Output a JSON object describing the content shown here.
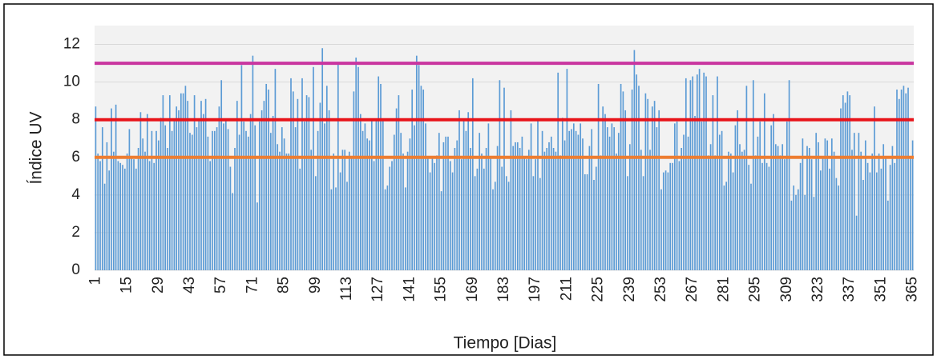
{
  "chart_data": {
    "type": "bar",
    "ylabel": "Índice UV",
    "xlabel": "Tiempo [Dias]",
    "color": "#5b9bd5",
    "ylim": [
      0,
      13
    ],
    "yticks": [
      0,
      2,
      4,
      6,
      8,
      10,
      12
    ],
    "grid": true,
    "hlines": [
      {
        "value": 6,
        "color": "#ed7d31"
      },
      {
        "value": 8,
        "color": "#e8141a"
      },
      {
        "value": 11,
        "color": "#c9359f"
      }
    ],
    "categories": [
      "1",
      null,
      null,
      null,
      null,
      null,
      null,
      null,
      null,
      null,
      null,
      null,
      null,
      null,
      "15",
      null,
      null,
      null,
      null,
      null,
      null,
      null,
      null,
      null,
      null,
      null,
      null,
      null,
      "29",
      null,
      null,
      null,
      null,
      null,
      null,
      null,
      null,
      null,
      null,
      null,
      null,
      null,
      "43",
      null,
      null,
      null,
      null,
      null,
      null,
      null,
      null,
      null,
      null,
      null,
      null,
      null,
      "57",
      null,
      null,
      null,
      null,
      null,
      null,
      null,
      null,
      null,
      null,
      null,
      null,
      null,
      "71",
      null,
      null,
      null,
      null,
      null,
      null,
      null,
      null,
      null,
      null,
      null,
      null,
      null,
      "85",
      null,
      null,
      null,
      null,
      null,
      null,
      null,
      null,
      null,
      null,
      null,
      null,
      null,
      "99",
      null,
      null,
      null,
      null,
      null,
      null,
      null,
      null,
      null,
      null,
      null,
      null,
      null,
      "113",
      null,
      null,
      null,
      null,
      null,
      null,
      null,
      null,
      null,
      null,
      null,
      null,
      null,
      "127",
      null,
      null,
      null,
      null,
      null,
      null,
      null,
      null,
      null,
      null,
      null,
      null,
      null,
      "141",
      null,
      null,
      null,
      null,
      null,
      null,
      null,
      null,
      null,
      null,
      null,
      null,
      null,
      "155",
      null,
      null,
      null,
      null,
      null,
      null,
      null,
      null,
      null,
      null,
      null,
      null,
      null,
      "169",
      null,
      null,
      null,
      null,
      null,
      null,
      null,
      null,
      null,
      null,
      null,
      null,
      null,
      "183",
      null,
      null,
      null,
      null,
      null,
      null,
      null,
      null,
      null,
      null,
      null,
      null,
      null,
      "197",
      null,
      null,
      null,
      null,
      null,
      null,
      null,
      null,
      null,
      null,
      null,
      null,
      null,
      "211",
      null,
      null,
      null,
      null,
      null,
      null,
      null,
      null,
      null,
      null,
      null,
      null,
      null,
      "225",
      null,
      null,
      null,
      null,
      null,
      null,
      null,
      null,
      null,
      null,
      null,
      null,
      null,
      "239",
      null,
      null,
      null,
      null,
      null,
      null,
      null,
      null,
      null,
      null,
      null,
      null,
      null,
      "253",
      null,
      null,
      null,
      null,
      null,
      null,
      null,
      null,
      null,
      null,
      null,
      null,
      null,
      "267",
      null,
      null,
      null,
      null,
      null,
      null,
      null,
      null,
      null,
      null,
      null,
      null,
      null,
      "281",
      null,
      null,
      null,
      null,
      null,
      null,
      null,
      null,
      null,
      null,
      null,
      null,
      null,
      "295",
      null,
      null,
      null,
      null,
      null,
      null,
      null,
      null,
      null,
      null,
      null,
      null,
      null,
      "309",
      null,
      null,
      null,
      null,
      null,
      null,
      null,
      null,
      null,
      null,
      null,
      null,
      null,
      "323",
      null,
      null,
      null,
      null,
      null,
      null,
      null,
      null,
      null,
      null,
      null,
      null,
      null,
      "337",
      null,
      null,
      null,
      null,
      null,
      null,
      null,
      null,
      null,
      null,
      null,
      null,
      null,
      "351",
      null,
      null,
      null,
      null,
      null,
      null,
      null,
      null,
      null,
      null,
      null,
      null,
      null,
      "365"
    ],
    "values": [
      8.7,
      6.2,
      5.8,
      7.6,
      4.6,
      6.8,
      5.3,
      8.6,
      6.3,
      8.8,
      5.8,
      5.7,
      5.6,
      5.4,
      6.2,
      7.5,
      6.0,
      5.9,
      5.4,
      6.5,
      8.4,
      7.0,
      6.3,
      8.3,
      5.8,
      7.4,
      5.7,
      7.4,
      6.9,
      8.1,
      9.3,
      7.7,
      6.5,
      9.3,
      7.4,
      8.0,
      8.7,
      8.5,
      9.4,
      9.4,
      9.8,
      9.0,
      7.3,
      7.2,
      9.3,
      7.6,
      8.0,
      9.0,
      8.3,
      9.1,
      7.1,
      5.8,
      7.4,
      7.4,
      7.6,
      8.7,
      10.1,
      7.8,
      8.0,
      7.5,
      5.5,
      4.1,
      6.5,
      9.0,
      7.2,
      10.9,
      7.9,
      7.4,
      7.1,
      8.3,
      11.4,
      7.7,
      3.6,
      7.9,
      8.5,
      9.0,
      9.9,
      9.6,
      7.3,
      8.2,
      10.7,
      6.7,
      6.3,
      7.6,
      7.0,
      6.2,
      6.2,
      10.2,
      9.5,
      7.6,
      9.1,
      5.4,
      10.2,
      7.9,
      9.3,
      9.2,
      6.4,
      10.8,
      5.0,
      7.4,
      8.9,
      11.8,
      7.8,
      9.8,
      8.5,
      4.3,
      6.2,
      4.4,
      11.0,
      5.2,
      6.4,
      6.4,
      4.7,
      6.3,
      6.0,
      9.5,
      11.3,
      10.8,
      8.3,
      7.4,
      7.8,
      7.0,
      6.9,
      8.0,
      5.8,
      8.0,
      10.3,
      9.9,
      8.0,
      4.3,
      4.5,
      5.5,
      5.8,
      7.2,
      8.6,
      9.3,
      7.3,
      6.2,
      4.4,
      6.3,
      7.0,
      9.6,
      7.7,
      11.4,
      10.9,
      9.8,
      9.6,
      7.8,
      6.0,
      5.2,
      6.0,
      5.7,
      6.1,
      7.3,
      4.2,
      6.8,
      7.1,
      7.1,
      5.8,
      5.2,
      6.5,
      6.9,
      8.5,
      5.9,
      8.0,
      7.4,
      8.4,
      6.5,
      10.2,
      5.0,
      5.4,
      7.3,
      6.2,
      5.4,
      6.5,
      7.8,
      6.0,
      4.3,
      4.7,
      6.6,
      10.1,
      5.5,
      9.7,
      5.0,
      4.7,
      8.5,
      6.6,
      6.8,
      6.8,
      6.5,
      7.1,
      6.0,
      5.9,
      6.4,
      7.8,
      5.0,
      5.9,
      8.0,
      4.9,
      7.4,
      6.3,
      6.5,
      6.8,
      7.1,
      6.5,
      6.3,
      10.5,
      6.1,
      8.1,
      6.9,
      10.7,
      7.4,
      7.5,
      7.8,
      7.4,
      7.2,
      7.8,
      7.0,
      5.1,
      5.1,
      6.6,
      7.5,
      4.8,
      5.5,
      9.9,
      6.1,
      8.7,
      8.3,
      7.6,
      7.1,
      7.8,
      7.6,
      6.2,
      7.3,
      9.9,
      9.5,
      8.5,
      5.0,
      6.7,
      9.6,
      11.7,
      10.4,
      9.8,
      6.4,
      5.0,
      9.4,
      9.1,
      6.4,
      8.7,
      9.0,
      7.6,
      8.5,
      4.3,
      5.2,
      5.3,
      5.2,
      5.7,
      5.7,
      7.8,
      7.9,
      5.8,
      6.5,
      7.2,
      10.2,
      7.1,
      10.1,
      10.3,
      8.2,
      10.4,
      10.7,
      7.9,
      10.5,
      10.3,
      6.1,
      6.7,
      9.3,
      6.1,
      10.3,
      7.2,
      7.4,
      4.5,
      4.7,
      6.3,
      6.2,
      5.2,
      7.7,
      8.5,
      6.7,
      6.3,
      6.4,
      9.8,
      5.6,
      4.6,
      10.1,
      6.1,
      7.1,
      7.9,
      5.7,
      9.4,
      5.7,
      5.5,
      7.7,
      8.3,
      6.7,
      6.6,
      6.1,
      6.7,
      5.9,
      7.9,
      10.1,
      3.7,
      4.5,
      4.0,
      4.3,
      5.7,
      7.0,
      4.0,
      6.6,
      6.5,
      5.9,
      3.9,
      7.3,
      6.8,
      5.3,
      6.0,
      7.0,
      6.9,
      5.4,
      7.0,
      6.3,
      4.9,
      4.5,
      8.6,
      9.3,
      8.9,
      9.5,
      9.3,
      6.4,
      7.3,
      2.9,
      7.3,
      6.3,
      4.8,
      6.9,
      5.7,
      5.2,
      6.2,
      8.7,
      5.2,
      6.2,
      5.4,
      6.7,
      6.0,
      3.7,
      5.6,
      6.6,
      5.7,
      9.6,
      9.1,
      9.6,
      9.8,
      9.4,
      9.7,
      6.0,
      6.9
    ]
  }
}
